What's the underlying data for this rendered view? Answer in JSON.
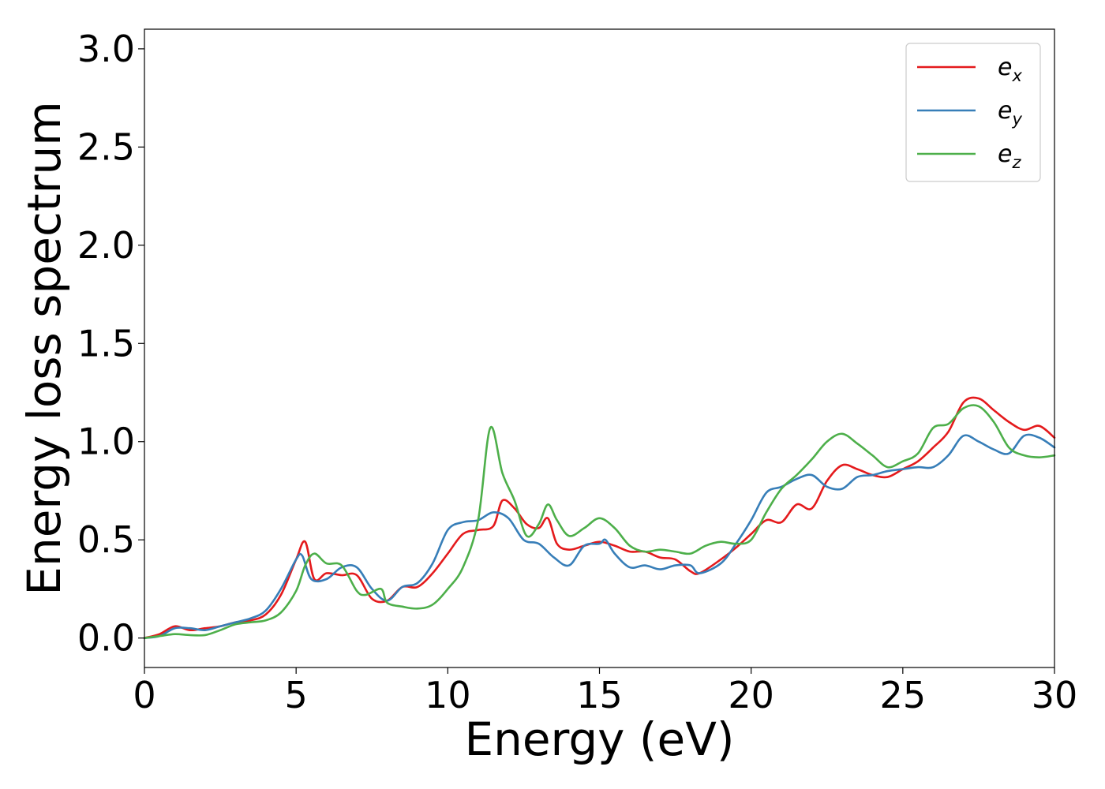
{
  "chart_data": {
    "type": "line",
    "title": "",
    "xlabel": "Energy (eV)",
    "ylabel": "Energy loss spectrum",
    "xlim": [
      0,
      30
    ],
    "ylim": [
      -0.15,
      3.1
    ],
    "xticks": [
      0,
      5,
      10,
      15,
      20,
      25,
      30
    ],
    "xtick_labels": [
      "0",
      "5",
      "10",
      "15",
      "20",
      "25",
      "30"
    ],
    "yticks": [
      0.0,
      0.5,
      1.0,
      1.5,
      2.0,
      2.5,
      3.0
    ],
    "ytick_labels": [
      "0.0",
      "0.5",
      "1.0",
      "1.5",
      "2.0",
      "2.5",
      "3.0"
    ],
    "grid": false,
    "legend_position": "top-right",
    "series": [
      {
        "name": "e",
        "subscript": "x",
        "color": "#e41a1c",
        "x": [
          0,
          0.5,
          1.0,
          1.5,
          2.0,
          2.5,
          3.0,
          3.5,
          4.0,
          4.5,
          5.0,
          5.3,
          5.6,
          6.0,
          6.5,
          7.0,
          7.5,
          8.0,
          8.5,
          9.0,
          9.5,
          10.0,
          10.5,
          11.0,
          11.5,
          11.8,
          12.2,
          12.6,
          13.0,
          13.3,
          13.6,
          14.0,
          14.5,
          15.0,
          15.5,
          16.0,
          16.5,
          17.0,
          17.5,
          18.0,
          18.3,
          19.0,
          19.5,
          20.0,
          20.5,
          21.0,
          21.5,
          22.0,
          22.5,
          23.0,
          23.5,
          24.0,
          24.5,
          25.0,
          25.5,
          26.0,
          26.5,
          27.0,
          27.5,
          28.0,
          28.5,
          29.0,
          29.5,
          30.0
        ],
        "y": [
          0.0,
          0.02,
          0.06,
          0.04,
          0.05,
          0.06,
          0.08,
          0.09,
          0.12,
          0.22,
          0.4,
          0.49,
          0.3,
          0.33,
          0.32,
          0.32,
          0.2,
          0.19,
          0.26,
          0.26,
          0.33,
          0.43,
          0.53,
          0.55,
          0.57,
          0.7,
          0.66,
          0.58,
          0.56,
          0.61,
          0.48,
          0.45,
          0.47,
          0.49,
          0.47,
          0.44,
          0.44,
          0.41,
          0.4,
          0.34,
          0.33,
          0.4,
          0.46,
          0.53,
          0.6,
          0.59,
          0.68,
          0.66,
          0.8,
          0.88,
          0.86,
          0.83,
          0.82,
          0.86,
          0.9,
          0.97,
          1.05,
          1.2,
          1.22,
          1.16,
          1.1,
          1.06,
          1.08,
          1.02
        ]
      },
      {
        "name": "e",
        "subscript": "y",
        "color": "#377eb8",
        "x": [
          0,
          0.5,
          1.0,
          1.5,
          2.0,
          2.5,
          3.0,
          3.5,
          4.0,
          4.5,
          5.0,
          5.2,
          5.5,
          6.0,
          6.5,
          7.0,
          7.5,
          8.0,
          8.5,
          9.0,
          9.5,
          10.0,
          10.5,
          11.0,
          11.5,
          12.0,
          12.5,
          13.0,
          13.5,
          14.0,
          14.5,
          15.0,
          15.2,
          15.5,
          16.0,
          16.5,
          17.0,
          17.5,
          18.0,
          18.3,
          19.0,
          19.5,
          20.0,
          20.5,
          21.0,
          21.5,
          22.0,
          22.5,
          23.0,
          23.5,
          24.0,
          24.5,
          25.0,
          25.5,
          26.0,
          26.5,
          27.0,
          27.5,
          28.0,
          28.5,
          29.0,
          29.5,
          30.0
        ],
        "y": [
          0.0,
          0.01,
          0.05,
          0.05,
          0.04,
          0.06,
          0.08,
          0.1,
          0.14,
          0.25,
          0.4,
          0.42,
          0.3,
          0.3,
          0.36,
          0.36,
          0.25,
          0.19,
          0.26,
          0.28,
          0.38,
          0.55,
          0.59,
          0.6,
          0.64,
          0.61,
          0.5,
          0.48,
          0.41,
          0.37,
          0.47,
          0.48,
          0.5,
          0.43,
          0.36,
          0.37,
          0.35,
          0.37,
          0.37,
          0.33,
          0.38,
          0.48,
          0.6,
          0.74,
          0.77,
          0.81,
          0.83,
          0.77,
          0.76,
          0.82,
          0.83,
          0.85,
          0.86,
          0.87,
          0.87,
          0.93,
          1.03,
          1.0,
          0.96,
          0.94,
          1.03,
          1.02,
          0.97
        ]
      },
      {
        "name": "e",
        "subscript": "z",
        "color": "#4daf4a",
        "x": [
          0,
          0.5,
          1.0,
          1.5,
          2.0,
          2.5,
          3.0,
          3.5,
          4.0,
          4.5,
          5.0,
          5.3,
          5.6,
          6.0,
          6.5,
          7.0,
          7.3,
          7.8,
          8.0,
          8.5,
          9.0,
          9.5,
          10.0,
          10.5,
          11.0,
          11.4,
          11.8,
          12.2,
          12.6,
          13.0,
          13.3,
          13.6,
          14.0,
          14.5,
          15.0,
          15.5,
          16.0,
          16.5,
          17.0,
          17.5,
          18.0,
          18.5,
          19.0,
          19.5,
          20.0,
          20.5,
          21.0,
          21.5,
          22.0,
          22.5,
          23.0,
          23.5,
          24.0,
          24.5,
          25.0,
          25.5,
          26.0,
          26.5,
          27.0,
          27.5,
          28.0,
          28.5,
          29.0,
          29.5,
          30.0
        ],
        "y": [
          0.0,
          0.01,
          0.02,
          0.015,
          0.015,
          0.04,
          0.07,
          0.08,
          0.09,
          0.13,
          0.24,
          0.37,
          0.43,
          0.38,
          0.37,
          0.24,
          0.22,
          0.25,
          0.18,
          0.16,
          0.15,
          0.17,
          0.25,
          0.36,
          0.6,
          1.07,
          0.84,
          0.7,
          0.52,
          0.58,
          0.68,
          0.6,
          0.52,
          0.56,
          0.61,
          0.56,
          0.47,
          0.44,
          0.45,
          0.44,
          0.43,
          0.47,
          0.49,
          0.48,
          0.5,
          0.64,
          0.76,
          0.83,
          0.91,
          1.0,
          1.04,
          0.99,
          0.93,
          0.87,
          0.9,
          0.94,
          1.07,
          1.09,
          1.17,
          1.18,
          1.1,
          0.97,
          0.93,
          0.92,
          0.93
        ]
      }
    ]
  }
}
